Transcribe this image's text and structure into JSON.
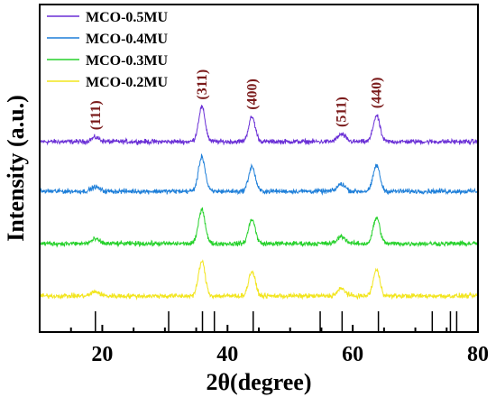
{
  "chart_data": {
    "type": "line",
    "title": "",
    "xlabel": "2θ(degree)",
    "ylabel": "Intensity (a.u.)",
    "xlim": [
      10,
      80
    ],
    "xticks": [
      20,
      40,
      60,
      80
    ],
    "yticks_shown": false,
    "legend_position": "top-left",
    "series": [
      {
        "name": "MCO-0.5MU",
        "color": "#6a2fd6",
        "offset": 3,
        "noise": 1.2
      },
      {
        "name": "MCO-0.4MU",
        "color": "#1e7fd9",
        "offset": 2,
        "noise": 1.2
      },
      {
        "name": "MCO-0.3MU",
        "color": "#26d12b",
        "offset": 1,
        "noise": 1.2
      },
      {
        "name": "MCO-0.2MU",
        "color": "#f2e51d",
        "offset": 0,
        "noise": 1.2
      }
    ],
    "peaks": [
      {
        "label": "(111)",
        "x": 18.9,
        "height": 1.5
      },
      {
        "label": "(311)",
        "x": 35.9,
        "height": 12
      },
      {
        "label": "(400)",
        "x": 43.9,
        "height": 8.5
      },
      {
        "label": "(511)",
        "x": 58.2,
        "height": 2.5
      },
      {
        "label": "(440)",
        "x": 63.8,
        "height": 9
      }
    ],
    "reference_lines": [
      18.9,
      30.6,
      36.0,
      37.9,
      44.1,
      54.8,
      58.3,
      64.1,
      72.7,
      75.6,
      76.6
    ]
  }
}
